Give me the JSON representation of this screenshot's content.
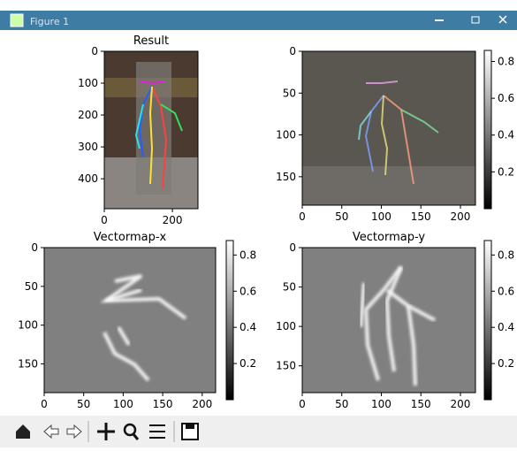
{
  "window": {
    "title": "Figure 1"
  },
  "panels": [
    {
      "title": "Result",
      "xlim": [
        0,
        275
      ],
      "ylim": [
        0,
        494
      ],
      "xticks": [
        0,
        200
      ],
      "yticks": [
        0,
        100,
        200,
        300,
        400
      ]
    },
    {
      "xlim": [
        0,
        219
      ],
      "ylim": [
        0,
        184
      ],
      "xticks": [
        0,
        50,
        100,
        150,
        200
      ],
      "yticks": [
        0,
        50,
        100,
        150
      ],
      "clim": [
        0,
        0.86
      ],
      "cticks": [
        0.2,
        0.4,
        0.6,
        0.8
      ]
    },
    {
      "title": "Vectormap-x",
      "xlim": [
        0,
        217
      ],
      "ylim": [
        0,
        187
      ],
      "xticks": [
        0,
        50,
        100,
        150,
        200
      ],
      "yticks": [
        0,
        50,
        100,
        150
      ],
      "clim": [
        0,
        0.88
      ],
      "cticks": [
        0.2,
        0.4,
        0.6,
        0.8
      ]
    },
    {
      "title": "Vectormap-y",
      "xlim": [
        0,
        219
      ],
      "ylim": [
        0,
        184
      ],
      "xticks": [
        0,
        50,
        100,
        150,
        200
      ],
      "yticks": [
        0,
        50,
        100,
        150
      ],
      "clim": [
        0,
        0.88
      ],
      "cticks": [
        0.2,
        0.4,
        0.6,
        0.8
      ]
    }
  ]
}
